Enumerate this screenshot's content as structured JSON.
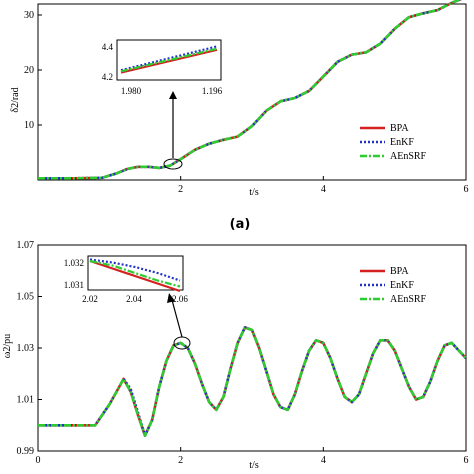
{
  "legend_labels": [
    "BPA",
    "EnKF",
    "AEnSRF"
  ],
  "colors": {
    "BPA": "#d42020",
    "EnKF": "#2234c8",
    "AEnSRF": "#2ecc2e"
  },
  "chart_data": [
    {
      "type": "line",
      "panel_label": "(a)",
      "xlabel": "t/s",
      "ylabel": "δ2/rad",
      "xlim": [
        0,
        6
      ],
      "ylim": [
        0,
        32
      ],
      "xticks": [
        "2",
        "4",
        "6"
      ],
      "yticks": [
        "10",
        "20",
        "30"
      ],
      "legend": "right",
      "x": [
        0,
        0.5,
        0.9,
        1.1,
        1.25,
        1.4,
        1.55,
        1.7,
        1.85,
        2.0,
        2.2,
        2.4,
        2.6,
        2.8,
        3.0,
        3.2,
        3.4,
        3.6,
        3.8,
        4.0,
        4.2,
        4.4,
        4.6,
        4.8,
        5.0,
        5.2,
        5.4,
        5.6,
        5.8,
        6.0
      ],
      "series": [
        {
          "name": "BPA",
          "values": [
            0.3,
            0.3,
            0.4,
            1.2,
            2.0,
            2.4,
            2.4,
            2.2,
            2.6,
            3.8,
            5.5,
            6.6,
            7.3,
            7.9,
            9.8,
            12.6,
            14.3,
            14.9,
            16.2,
            18.8,
            21.5,
            22.8,
            23.2,
            24.8,
            27.5,
            29.6,
            30.3,
            30.9,
            32.2,
            33.3
          ]
        },
        {
          "name": "EnKF",
          "values": [
            0.3,
            0.3,
            0.4,
            1.2,
            2.0,
            2.4,
            2.4,
            2.2,
            2.6,
            3.8,
            5.5,
            6.6,
            7.3,
            7.9,
            9.8,
            12.6,
            14.3,
            14.9,
            16.2,
            18.8,
            21.5,
            22.8,
            23.2,
            24.8,
            27.5,
            29.6,
            30.3,
            30.9,
            32.2,
            33.3
          ]
        },
        {
          "name": "AEnSRF",
          "values": [
            0.3,
            0.3,
            0.4,
            1.2,
            2.0,
            2.4,
            2.4,
            2.2,
            2.6,
            3.8,
            5.5,
            6.6,
            7.3,
            7.9,
            9.8,
            12.6,
            14.3,
            14.9,
            16.2,
            18.8,
            21.5,
            22.8,
            23.2,
            24.8,
            27.5,
            29.6,
            30.3,
            30.9,
            32.2,
            33.3
          ]
        }
      ],
      "inset": {
        "xticks": [
          "1.980",
          "1.196"
        ],
        "yticks": [
          "4.4",
          "4.2"
        ],
        "x": [
          0,
          1
        ],
        "ylim": [
          4.15,
          4.45
        ],
        "series": [
          {
            "name": "BPA",
            "values": [
              4.19,
              4.39
            ]
          },
          {
            "name": "EnKF",
            "values": [
              4.21,
              4.42
            ]
          },
          {
            "name": "AEnSRF",
            "values": [
              4.2,
              4.4
            ]
          }
        ]
      }
    },
    {
      "type": "line",
      "xlabel": "t/s",
      "ylabel": "ω2/pu",
      "xlim": [
        0,
        6
      ],
      "ylim": [
        0.99,
        1.07
      ],
      "xticks": [
        "0",
        "2",
        "4",
        "6"
      ],
      "yticks": [
        "0.99",
        "1.01",
        "1.03",
        "1.05",
        "1.07"
      ],
      "legend": "top-right",
      "x": [
        0,
        0.5,
        0.8,
        1.0,
        1.1,
        1.2,
        1.3,
        1.4,
        1.5,
        1.6,
        1.7,
        1.8,
        1.9,
        2.0,
        2.1,
        2.2,
        2.3,
        2.4,
        2.5,
        2.6,
        2.7,
        2.8,
        2.9,
        3.0,
        3.1,
        3.2,
        3.3,
        3.4,
        3.5,
        3.6,
        3.7,
        3.8,
        3.9,
        4.0,
        4.1,
        4.2,
        4.3,
        4.4,
        4.5,
        4.6,
        4.7,
        4.8,
        4.9,
        5.0,
        5.1,
        5.2,
        5.3,
        5.4,
        5.5,
        5.6,
        5.7,
        5.8,
        5.9,
        6.0
      ],
      "series": [
        {
          "name": "BPA",
          "values": [
            1.0,
            1.0,
            1.0,
            1.008,
            1.013,
            1.018,
            1.013,
            1.004,
            0.996,
            1.002,
            1.015,
            1.025,
            1.031,
            1.032,
            1.03,
            1.024,
            1.016,
            1.009,
            1.006,
            1.011,
            1.022,
            1.032,
            1.038,
            1.037,
            1.03,
            1.021,
            1.012,
            1.007,
            1.006,
            1.012,
            1.021,
            1.029,
            1.033,
            1.032,
            1.026,
            1.018,
            1.011,
            1.009,
            1.012,
            1.02,
            1.028,
            1.033,
            1.033,
            1.029,
            1.022,
            1.015,
            1.01,
            1.011,
            1.017,
            1.025,
            1.031,
            1.032,
            1.029,
            1.026
          ]
        },
        {
          "name": "EnKF",
          "values": [
            1.0,
            1.0,
            1.0,
            1.008,
            1.013,
            1.018,
            1.014,
            1.005,
            0.996,
            1.002,
            1.015,
            1.025,
            1.031,
            1.032,
            1.03,
            1.024,
            1.016,
            1.009,
            1.006,
            1.011,
            1.022,
            1.032,
            1.038,
            1.037,
            1.03,
            1.021,
            1.012,
            1.007,
            1.006,
            1.012,
            1.021,
            1.029,
            1.033,
            1.032,
            1.026,
            1.018,
            1.011,
            1.009,
            1.012,
            1.02,
            1.028,
            1.033,
            1.033,
            1.029,
            1.022,
            1.015,
            1.01,
            1.011,
            1.017,
            1.025,
            1.031,
            1.032,
            1.029,
            1.026
          ]
        },
        {
          "name": "AEnSRF",
          "values": [
            1.0,
            1.0,
            1.0,
            1.008,
            1.013,
            1.018,
            1.013,
            1.004,
            0.996,
            1.002,
            1.015,
            1.025,
            1.031,
            1.032,
            1.03,
            1.024,
            1.016,
            1.009,
            1.006,
            1.011,
            1.022,
            1.032,
            1.038,
            1.037,
            1.03,
            1.021,
            1.012,
            1.007,
            1.006,
            1.012,
            1.021,
            1.029,
            1.033,
            1.032,
            1.026,
            1.018,
            1.011,
            1.009,
            1.012,
            1.02,
            1.028,
            1.033,
            1.033,
            1.029,
            1.022,
            1.015,
            1.01,
            1.011,
            1.017,
            1.025,
            1.031,
            1.032,
            1.029,
            1.026
          ]
        }
      ],
      "inset": {
        "xticks": [
          "2.02",
          "2.04",
          "2.06"
        ],
        "yticks": [
          "1.032",
          "1.031"
        ],
        "x": [
          2.02,
          2.03,
          2.04,
          2.05,
          2.06
        ],
        "ylim": [
          1.0305,
          1.0325
        ],
        "series": [
          {
            "name": "BPA",
            "values": [
              1.0323,
              1.0318,
              1.0313,
              1.0308,
              1.0303
            ]
          },
          {
            "name": "EnKF",
            "values": [
              1.0324,
              1.0322,
              1.0319,
              1.0315,
              1.031
            ]
          },
          {
            "name": "AEnSRF",
            "values": [
              1.0323,
              1.032,
              1.0315,
              1.031,
              1.0306
            ]
          }
        ]
      }
    }
  ]
}
